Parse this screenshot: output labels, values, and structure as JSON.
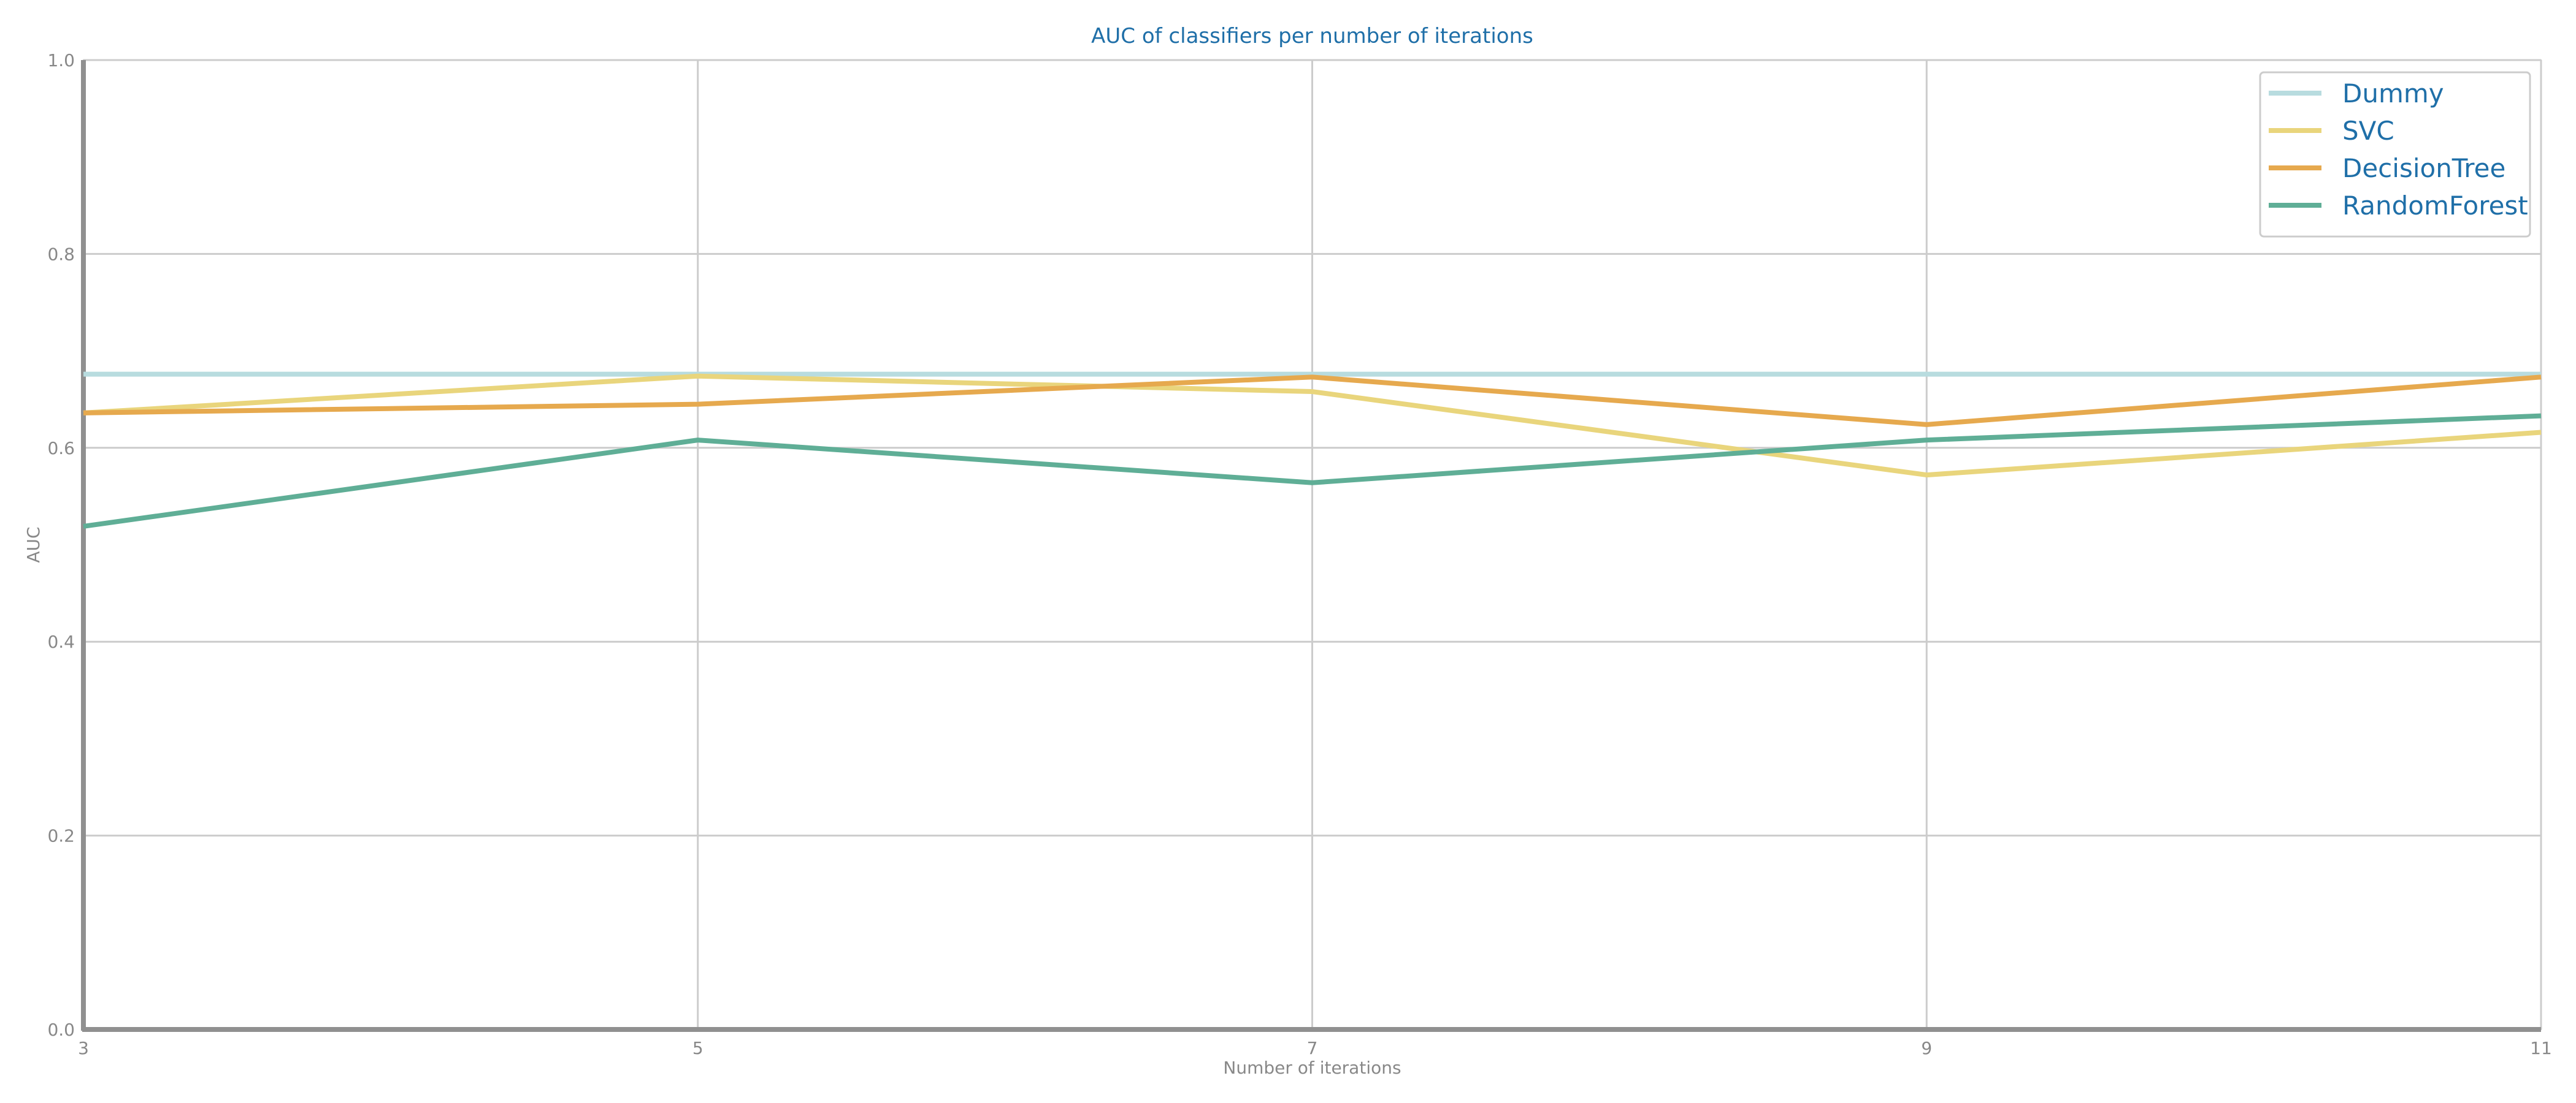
{
  "colors": {
    "title": "#1f6fa8",
    "legend_text": "#1f6fa8",
    "tick": "#888888",
    "grid": "#cccccc",
    "axis": "#909090",
    "legend_border": "#cccccc"
  },
  "chart_data": {
    "type": "line",
    "title": "AUC of classifiers per number of iterations",
    "xlabel": "Number of iterations",
    "ylabel": "AUC",
    "x": [
      3,
      5,
      7,
      9,
      11
    ],
    "x_ticks": [
      "3",
      "5",
      "7",
      "9",
      "11"
    ],
    "xlim": [
      3,
      11
    ],
    "ylim": [
      0,
      1
    ],
    "y_ticks": [
      "0.0",
      "0.2",
      "0.4",
      "0.6",
      "0.8",
      "1.0"
    ],
    "grid": true,
    "legend_position": "top-right",
    "series": [
      {
        "name": "Dummy",
        "color": "#b8dcdf",
        "values": [
          0.676,
          0.676,
          0.676,
          0.676,
          0.676
        ]
      },
      {
        "name": "SVC",
        "color": "#e9d57c",
        "values": [
          0.636,
          0.674,
          0.658,
          0.572,
          0.616
        ]
      },
      {
        "name": "DecisionTree",
        "color": "#e6a94e",
        "values": [
          0.636,
          0.645,
          0.673,
          0.624,
          0.673
        ]
      },
      {
        "name": "RandomForest",
        "color": "#5fae96",
        "values": [
          0.519,
          0.608,
          0.564,
          0.608,
          0.633
        ]
      }
    ]
  }
}
